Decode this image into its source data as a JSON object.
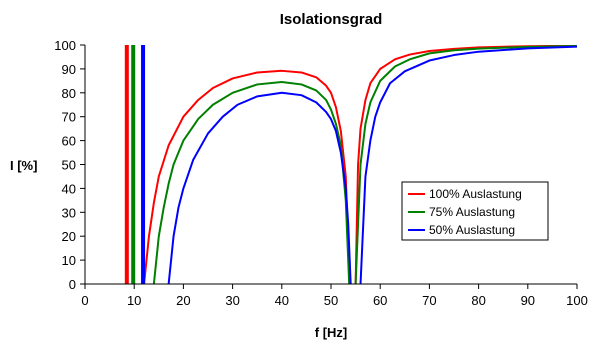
{
  "chart_data": {
    "type": "line",
    "title": "Isolationsgrad",
    "xlabel": "f [Hz]",
    "ylabel": "I [%]",
    "xlim": [
      0,
      100
    ],
    "ylim": [
      0,
      100
    ],
    "xticks": [
      0,
      10,
      20,
      30,
      40,
      50,
      60,
      70,
      80,
      90,
      100
    ],
    "yticks": [
      0,
      10,
      20,
      30,
      40,
      50,
      60,
      70,
      80,
      90,
      100
    ],
    "grid": false,
    "legend_position": "right",
    "series": [
      {
        "name": "100% Auslastung",
        "color": "#ff0000",
        "vline_x": 8.5,
        "segments": [
          [
            [
              12.0,
              0
            ],
            [
              13,
              20
            ],
            [
              14,
              34
            ],
            [
              15,
              45
            ],
            [
              17,
              58
            ],
            [
              20,
              70
            ],
            [
              23,
              77
            ],
            [
              26,
              82
            ],
            [
              30,
              86
            ],
            [
              35,
              88.5
            ],
            [
              40,
              89.2
            ],
            [
              44,
              88.5
            ],
            [
              47,
              86.5
            ],
            [
              49,
              83
            ],
            [
              50,
              80
            ],
            [
              51,
              74
            ],
            [
              52,
              64
            ],
            [
              53,
              45
            ],
            [
              53.8,
              0
            ]
          ],
          [
            [
              55.0,
              0
            ],
            [
              55.5,
              50
            ],
            [
              56,
              65
            ],
            [
              57,
              77
            ],
            [
              58,
              84
            ],
            [
              60,
              90
            ],
            [
              63,
              94
            ],
            [
              66,
              96
            ],
            [
              70,
              97.5
            ],
            [
              75,
              98.4
            ],
            [
              80,
              99
            ],
            [
              90,
              99.5
            ],
            [
              100,
              99.7
            ]
          ]
        ]
      },
      {
        "name": "75% Auslastung",
        "color": "#008000",
        "vline_x": 9.8,
        "segments": [
          [
            [
              14.0,
              0
            ],
            [
              15,
              20
            ],
            [
              16,
              32
            ],
            [
              17,
              42
            ],
            [
              18,
              50
            ],
            [
              20,
              60
            ],
            [
              23,
              69
            ],
            [
              26,
              75
            ],
            [
              30,
              80
            ],
            [
              35,
              83.5
            ],
            [
              40,
              84.5
            ],
            [
              44,
              83.5
            ],
            [
              47,
              81
            ],
            [
              49,
              77
            ],
            [
              50,
              73
            ],
            [
              51,
              67
            ],
            [
              52,
              58
            ],
            [
              53,
              35
            ],
            [
              53.7,
              0
            ]
          ],
          [
            [
              55.0,
              0
            ],
            [
              56,
              50
            ],
            [
              57,
              67
            ],
            [
              58,
              76
            ],
            [
              60,
              85
            ],
            [
              63,
              91
            ],
            [
              66,
              94
            ],
            [
              70,
              96.5
            ],
            [
              75,
              97.8
            ],
            [
              80,
              98.5
            ],
            [
              90,
              99.2
            ],
            [
              100,
              99.6
            ]
          ]
        ]
      },
      {
        "name": "50% Auslastung",
        "color": "#0000ff",
        "vline_x": 11.8,
        "segments": [
          [
            [
              17.0,
              0
            ],
            [
              18,
              20
            ],
            [
              19,
              32
            ],
            [
              20,
              40
            ],
            [
              22,
              52
            ],
            [
              25,
              63
            ],
            [
              28,
              70
            ],
            [
              31,
              75
            ],
            [
              35,
              78.5
            ],
            [
              40,
              80
            ],
            [
              44,
              79
            ],
            [
              47,
              76
            ],
            [
              49,
              72
            ],
            [
              50,
              69
            ],
            [
              51,
              64
            ],
            [
              52,
              55
            ],
            [
              53,
              40
            ],
            [
              53.5,
              25
            ],
            [
              54.0,
              0
            ]
          ],
          [
            [
              56.0,
              0
            ],
            [
              57,
              45
            ],
            [
              58,
              60
            ],
            [
              59,
              70
            ],
            [
              60,
              76
            ],
            [
              62,
              84
            ],
            [
              65,
              89
            ],
            [
              70,
              93.5
            ],
            [
              75,
              95.8
            ],
            [
              80,
              97.2
            ],
            [
              90,
              98.6
            ],
            [
              100,
              99.3
            ]
          ]
        ]
      }
    ]
  }
}
